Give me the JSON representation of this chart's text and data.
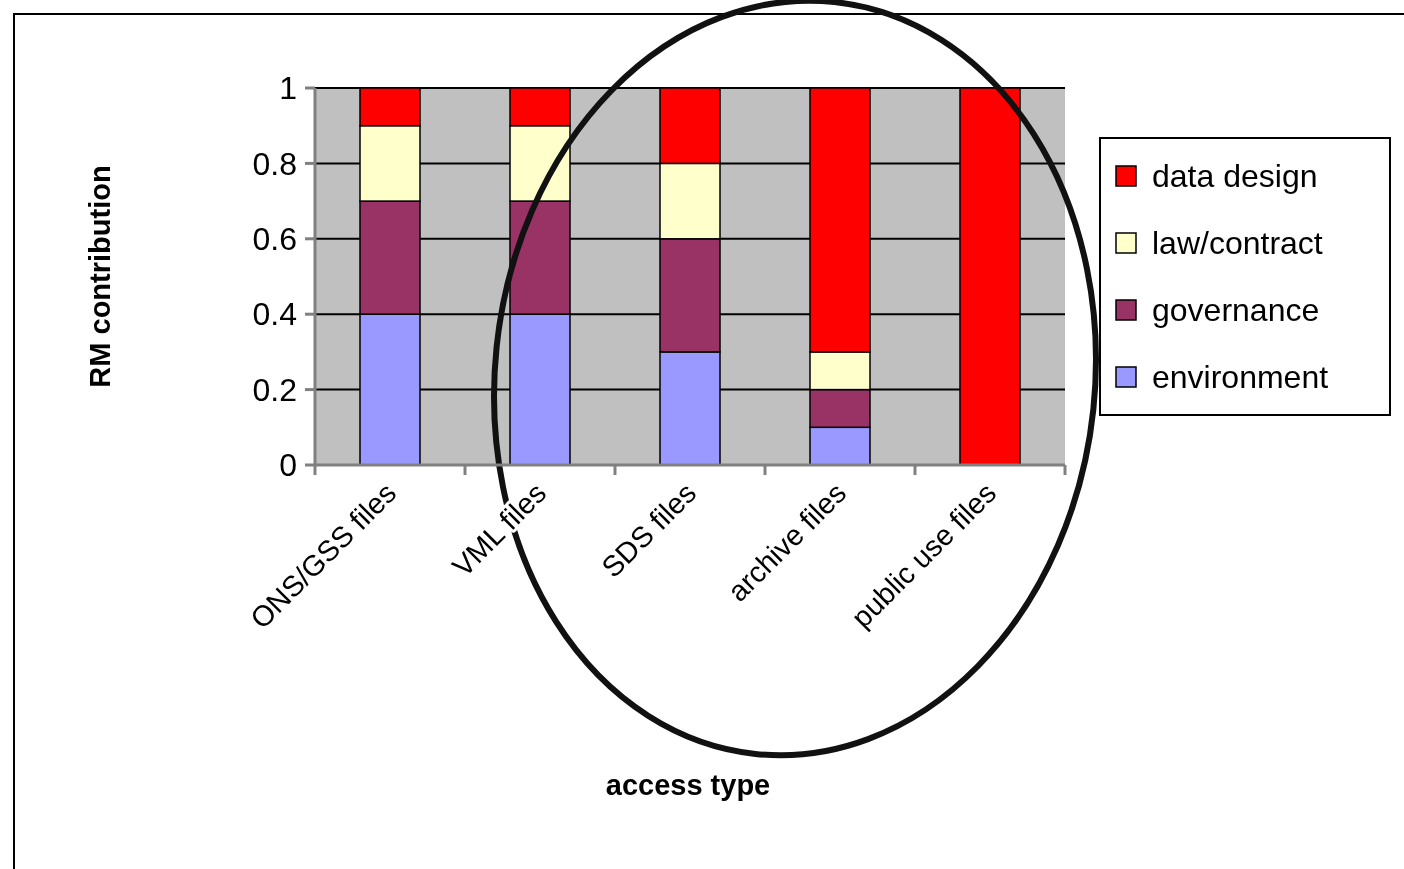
{
  "chart_data": {
    "type": "bar",
    "stacked": true,
    "xlabel": "access type",
    "ylabel": "RM contribution",
    "categories": [
      "ONS/GSS files",
      "VML files",
      "SDS files",
      "archive files",
      "public use files"
    ],
    "series": [
      {
        "name": "environment",
        "color": "#9999ff",
        "values": [
          0.4,
          0.4,
          0.3,
          0.1,
          0
        ]
      },
      {
        "name": "governance",
        "color": "#993366",
        "values": [
          0.3,
          0.3,
          0.3,
          0.1,
          0
        ]
      },
      {
        "name": "law/contract",
        "color": "#ffffcc",
        "values": [
          0.2,
          0.2,
          0.2,
          0.1,
          0
        ]
      },
      {
        "name": "data design",
        "color": "#ff0000",
        "values": [
          0.1,
          0.1,
          0.2,
          0.7,
          1
        ]
      }
    ],
    "ylim": [
      0,
      1
    ],
    "yticks": [
      0,
      0.2,
      0.4,
      0.6,
      0.8,
      1
    ],
    "grid": "y",
    "legend": "right"
  }
}
